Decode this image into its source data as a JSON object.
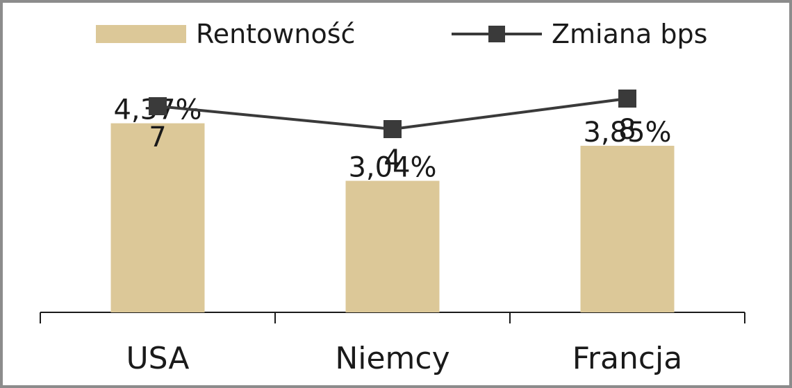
{
  "chart_data": {
    "type": "bar",
    "categories": [
      "USA",
      "Niemcy",
      "Francja"
    ],
    "series": [
      {
        "name": "Rentowność",
        "kind": "bar",
        "color": "#dcc898",
        "values": [
          4.37,
          3.04,
          3.85
        ],
        "labels": [
          "4,37%",
          "3,04%",
          "3,85%"
        ]
      },
      {
        "name": "Zmiana bps",
        "kind": "line",
        "color": "#3a3a3a",
        "marker": "square",
        "values": [
          7,
          4,
          8
        ],
        "labels": [
          "7",
          "4",
          "8"
        ]
      }
    ],
    "title": "",
    "xlabel": "",
    "ylabel": "",
    "ylim": [
      0,
      6
    ],
    "y2lim": [
      -20,
      11
    ],
    "grid": false,
    "legend": "top"
  }
}
